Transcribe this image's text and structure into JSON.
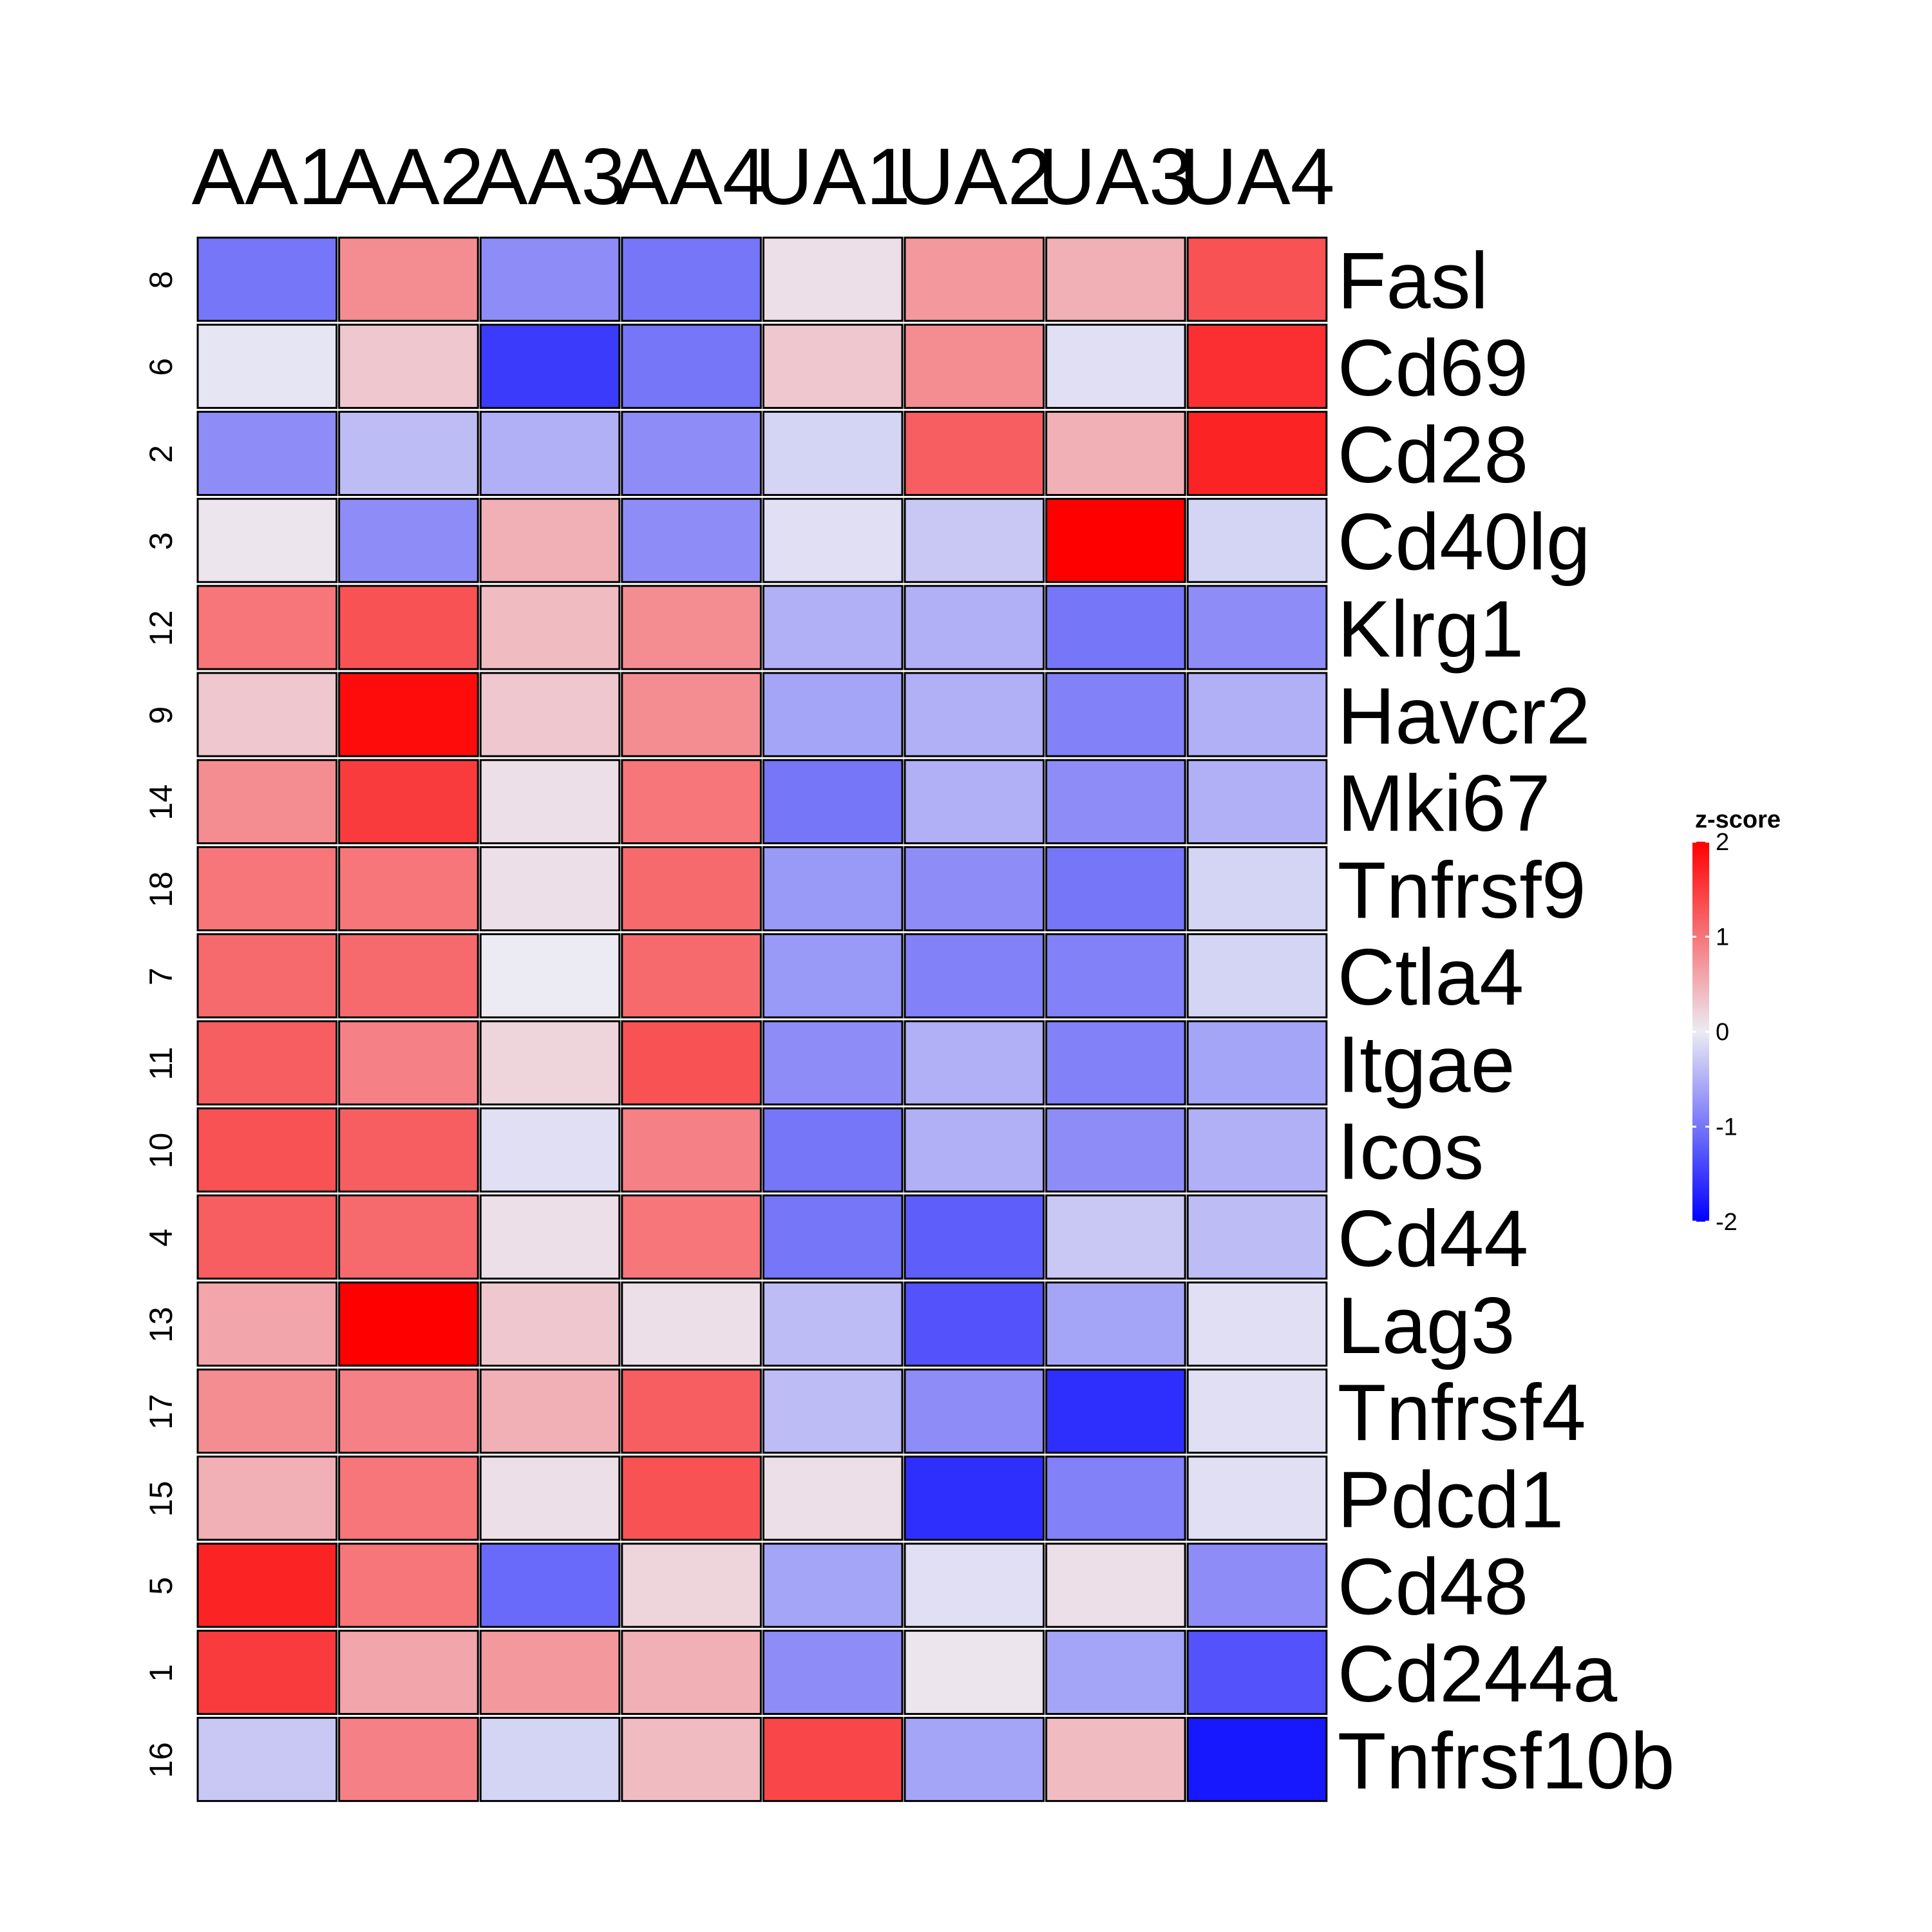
{
  "chart_data": {
    "type": "heatmap",
    "columns": [
      "AA1",
      "AA2",
      "AA3",
      "AA4",
      "UA1",
      "UA2",
      "UA3",
      "UA4"
    ],
    "row_ids": [
      "8",
      "6",
      "2",
      "3",
      "12",
      "9",
      "14",
      "18",
      "7",
      "11",
      "10",
      "4",
      "13",
      "17",
      "15",
      "5",
      "1",
      "16"
    ],
    "rows": [
      "Fasl",
      "Cd69",
      "Cd28",
      "Cd40lg",
      "Klrg1",
      "Havcr2",
      "Mki67",
      "Tnfrsf9",
      "Ctla4",
      "Itgae",
      "Icos",
      "Cd44",
      "Lag3",
      "Tnfrsf4",
      "Pdcd1",
      "Cd48",
      "Cd244a",
      "Tnfrsf10b"
    ],
    "values": [
      [
        -1.0,
        0.8,
        -0.8,
        -1.0,
        0.1,
        0.7,
        0.5,
        1.3
      ],
      [
        -0.05,
        0.3,
        -1.5,
        -1.0,
        0.3,
        0.8,
        -0.1,
        1.6
      ],
      [
        -0.8,
        -0.4,
        -0.5,
        -0.8,
        -0.2,
        1.2,
        0.5,
        1.7
      ],
      [
        0.05,
        -0.8,
        0.5,
        -0.8,
        -0.1,
        -0.3,
        2.0,
        -0.2
      ],
      [
        1.0,
        1.3,
        0.4,
        0.8,
        -0.5,
        -0.5,
        -1.0,
        -0.8
      ],
      [
        0.3,
        1.9,
        0.3,
        0.8,
        -0.6,
        -0.5,
        -0.9,
        -0.5
      ],
      [
        0.8,
        1.5,
        0.1,
        1.0,
        -1.0,
        -0.5,
        -0.8,
        -0.5
      ],
      [
        1.0,
        1.0,
        0.1,
        1.1,
        -0.7,
        -0.8,
        -1.0,
        -0.2
      ],
      [
        1.1,
        1.1,
        0.0,
        1.1,
        -0.7,
        -0.9,
        -0.9,
        -0.2
      ],
      [
        1.2,
        0.9,
        0.2,
        1.3,
        -0.8,
        -0.5,
        -0.9,
        -0.6
      ],
      [
        1.3,
        1.2,
        -0.1,
        0.9,
        -1.0,
        -0.5,
        -0.8,
        -0.5
      ],
      [
        1.2,
        1.1,
        0.1,
        1.0,
        -1.0,
        -1.2,
        -0.3,
        -0.4
      ],
      [
        0.6,
        2.0,
        0.3,
        0.1,
        -0.4,
        -1.3,
        -0.6,
        -0.1
      ],
      [
        0.8,
        0.9,
        0.5,
        1.2,
        -0.4,
        -0.8,
        -1.6,
        -0.1
      ],
      [
        0.5,
        1.0,
        0.1,
        1.3,
        0.1,
        -1.6,
        -0.9,
        -0.1
      ],
      [
        1.7,
        1.0,
        -1.1,
        0.2,
        -0.6,
        -0.1,
        0.1,
        -0.8
      ],
      [
        1.5,
        0.6,
        0.7,
        0.5,
        -0.8,
        0.05,
        -0.6,
        -1.3
      ],
      [
        -0.3,
        0.9,
        -0.2,
        0.4,
        1.4,
        -0.6,
        0.4,
        -1.8
      ]
    ],
    "legend": {
      "title": "z-score",
      "ticks": [
        2,
        1,
        0,
        -1,
        -2
      ],
      "tick_labels": [
        "2",
        "1",
        "0",
        "-1",
        "-2"
      ],
      "range": [
        -2,
        2
      ],
      "colors": {
        "low": "#0000ff",
        "mid": "#ecebf3",
        "high": "#ff0000"
      },
      "placement": "right"
    }
  }
}
